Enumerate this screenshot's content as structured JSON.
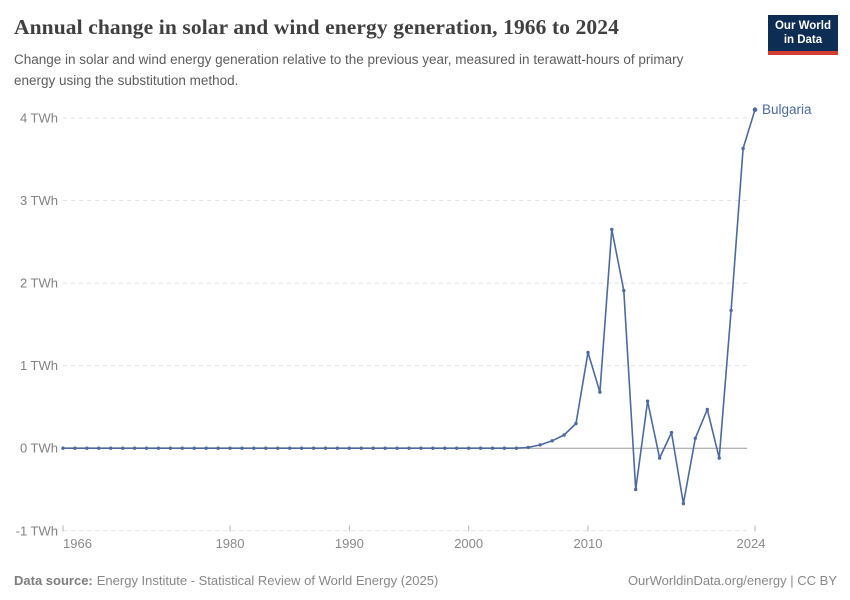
{
  "header": {
    "title": "Annual change in solar and wind energy generation, 1966 to 2024",
    "subtitle": "Change in solar and wind energy generation relative to the previous year, measured in terawatt-hours of primary energy using the substitution method.",
    "logo": {
      "line1": "Our World",
      "line2": "in Data",
      "bg_color": "#0d2d54",
      "accent_color": "#d53d32"
    }
  },
  "chart_data": {
    "type": "line",
    "title": "Annual change in solar and wind energy generation, 1966 to 2024",
    "xlabel": "",
    "ylabel": "TWh",
    "xlim": [
      1966,
      2024
    ],
    "ylim": [
      -1,
      4
    ],
    "grid": "horizontal-dashed",
    "legend_position": "end-of-line-label",
    "yticks": [
      {
        "value": 4,
        "label": "4 TWh"
      },
      {
        "value": 3,
        "label": "3 TWh"
      },
      {
        "value": 2,
        "label": "2 TWh"
      },
      {
        "value": 1,
        "label": "1 TWh"
      },
      {
        "value": 0,
        "label": "0 TWh"
      },
      {
        "value": -1,
        "label": "-1 TWh"
      }
    ],
    "xticks": [
      {
        "value": 1966,
        "label": "1966"
      },
      {
        "value": 1980,
        "label": "1980"
      },
      {
        "value": 1990,
        "label": "1990"
      },
      {
        "value": 2000,
        "label": "2000"
      },
      {
        "value": 2010,
        "label": "2010"
      },
      {
        "value": 2024,
        "label": "2024"
      }
    ],
    "series": [
      {
        "name": "Bulgaria",
        "color": "#4c6a9f",
        "years": [
          1966,
          1967,
          1968,
          1969,
          1970,
          1971,
          1972,
          1973,
          1974,
          1975,
          1976,
          1977,
          1978,
          1979,
          1980,
          1981,
          1982,
          1983,
          1984,
          1985,
          1986,
          1987,
          1988,
          1989,
          1990,
          1991,
          1992,
          1993,
          1994,
          1995,
          1996,
          1997,
          1998,
          1999,
          2000,
          2001,
          2002,
          2003,
          2004,
          2005,
          2006,
          2007,
          2008,
          2009,
          2010,
          2011,
          2012,
          2013,
          2014,
          2015,
          2016,
          2017,
          2018,
          2019,
          2020,
          2021,
          2022,
          2023,
          2024
        ],
        "values": [
          0,
          0,
          0,
          0,
          0,
          0,
          0,
          0,
          0,
          0,
          0,
          0,
          0,
          0,
          0,
          0,
          0,
          0,
          0,
          0,
          0,
          0,
          0,
          0,
          0,
          0,
          0,
          0,
          0,
          0,
          0,
          0,
          0,
          0,
          0,
          0,
          0,
          0,
          0,
          0.01,
          0.04,
          0.09,
          0.16,
          0.3,
          1.16,
          0.68,
          2.65,
          1.91,
          -0.5,
          0.57,
          -0.12,
          0.19,
          -0.67,
          0.12,
          0.47,
          -0.12,
          1.67,
          3.63,
          4.1
        ]
      }
    ]
  },
  "footer": {
    "source_label": "Data source:",
    "source_text": "Energy Institute - Statistical Review of World Energy (2025)",
    "right_text": "OurWorldinData.org/energy | CC BY"
  }
}
